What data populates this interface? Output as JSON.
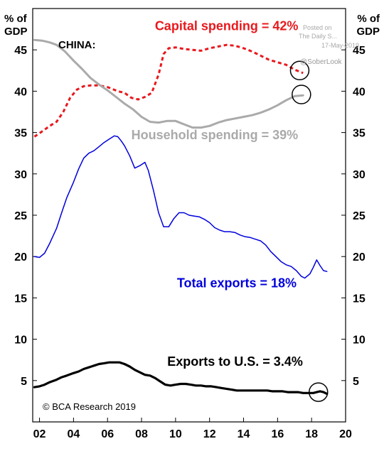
{
  "axis": {
    "left_title_line1": "% of",
    "left_title_line2": "GDP",
    "right_title_line1": "% of",
    "right_title_line2": "GDP"
  },
  "watermark": {
    "posted": "Posted on",
    "via": "The Daily S...",
    "date": "17-May-2019",
    "handle": "@SoberLook"
  },
  "chart_data": {
    "type": "line",
    "title": "CHINA:",
    "credit": "© BCA Research 2019",
    "xlim": [
      2001.6,
      2020
    ],
    "ylim": [
      0,
      50
    ],
    "x_ticks": [
      "02",
      "04",
      "06",
      "08",
      "10",
      "12",
      "14",
      "16",
      "18",
      "20"
    ],
    "x_tick_values": [
      2002,
      2004,
      2006,
      2008,
      2010,
      2012,
      2014,
      2016,
      2018,
      2020
    ],
    "y_ticks": [
      "5",
      "10",
      "15",
      "20",
      "25",
      "30",
      "35",
      "40",
      "45"
    ],
    "y_tick_values": [
      5,
      10,
      15,
      20,
      25,
      30,
      35,
      40,
      45
    ],
    "grid": false,
    "series": [
      {
        "name": "Capital spending = 42%",
        "color": "#e8191d",
        "style": "dashed",
        "x": [
          2001.7,
          2002.2,
          2002.6,
          2003.0,
          2003.4,
          2003.8,
          2004.2,
          2004.6,
          2005.0,
          2005.5,
          2006.0,
          2006.6,
          2007.0,
          2007.4,
          2007.8,
          2008.2,
          2008.6,
          2009.0,
          2009.3,
          2009.6,
          2010.0,
          2010.5,
          2011.0,
          2011.5,
          2012.0,
          2012.5,
          2013.0,
          2013.5,
          2014.0,
          2014.5,
          2015.0,
          2015.5,
          2016.0,
          2016.5,
          2017.0,
          2017.5
        ],
        "values": [
          34.5,
          35.2,
          35.8,
          36.3,
          37.5,
          39.2,
          40.2,
          40.6,
          40.7,
          40.7,
          40.5,
          40.0,
          39.8,
          39.2,
          39.0,
          39.3,
          39.8,
          42.0,
          44.5,
          45.2,
          45.3,
          45.1,
          45.0,
          44.9,
          45.2,
          45.4,
          45.6,
          45.5,
          45.2,
          44.8,
          44.3,
          43.8,
          43.5,
          43.2,
          42.6,
          42.2
        ]
      },
      {
        "name": "Household spending = 39%",
        "color": "#aaaaaa",
        "style": "solid",
        "x": [
          2001.7,
          2002.2,
          2002.6,
          2003.0,
          2003.5,
          2004.0,
          2004.5,
          2005.0,
          2005.5,
          2006.0,
          2006.5,
          2007.0,
          2007.5,
          2008.0,
          2008.5,
          2009.0,
          2009.5,
          2010.0,
          2010.5,
          2011.0,
          2011.5,
          2012.0,
          2012.5,
          2013.0,
          2013.5,
          2014.0,
          2014.5,
          2015.0,
          2015.5,
          2016.0,
          2016.5,
          2017.0,
          2017.5
        ],
        "values": [
          46.2,
          46.1,
          45.9,
          45.6,
          44.8,
          43.7,
          42.7,
          41.6,
          40.8,
          40.1,
          39.3,
          38.5,
          37.8,
          36.9,
          36.3,
          36.2,
          36.4,
          36.4,
          36.0,
          35.6,
          35.6,
          35.8,
          36.2,
          36.5,
          36.7,
          36.9,
          37.1,
          37.4,
          37.8,
          38.3,
          38.9,
          39.4,
          39.5
        ]
      },
      {
        "name": "Total exports = 18%",
        "color": "#0000dd",
        "style": "solid",
        "x": [
          2001.7,
          2002.0,
          2002.3,
          2002.6,
          2003.0,
          2003.3,
          2003.6,
          2004.0,
          2004.3,
          2004.6,
          2004.9,
          2005.2,
          2005.5,
          2005.8,
          2006.1,
          2006.4,
          2006.6,
          2006.8,
          2007.0,
          2007.3,
          2007.6,
          2007.9,
          2008.2,
          2008.4,
          2008.7,
          2009.0,
          2009.3,
          2009.6,
          2009.9,
          2010.2,
          2010.5,
          2010.8,
          2011.1,
          2011.4,
          2011.7,
          2012.0,
          2012.3,
          2012.6,
          2012.9,
          2013.2,
          2013.5,
          2013.8,
          2014.1,
          2014.4,
          2014.7,
          2015.0,
          2015.3,
          2015.6,
          2015.9,
          2016.2,
          2016.5,
          2016.8,
          2017.1,
          2017.4,
          2017.6,
          2017.9,
          2018.1,
          2018.3,
          2018.5,
          2018.7,
          2018.9
        ],
        "values": [
          20.0,
          19.9,
          20.4,
          21.6,
          23.4,
          25.3,
          27.1,
          29.0,
          30.6,
          31.9,
          32.5,
          32.8,
          33.3,
          33.8,
          34.2,
          34.6,
          34.5,
          34.0,
          33.4,
          32.2,
          30.7,
          31.0,
          31.4,
          30.4,
          28.0,
          25.3,
          23.6,
          23.6,
          24.6,
          25.3,
          25.3,
          25.0,
          24.9,
          24.8,
          24.5,
          24.1,
          23.5,
          23.2,
          23.0,
          23.0,
          22.9,
          22.6,
          22.4,
          22.3,
          22.1,
          21.9,
          21.4,
          20.6,
          20.0,
          19.4,
          19.0,
          18.8,
          18.3,
          17.6,
          17.4,
          17.9,
          18.7,
          19.6,
          18.9,
          18.3,
          18.2
        ]
      },
      {
        "name": "Exports to U.S. = 3.4%",
        "color": "#000000",
        "style": "solid",
        "x": [
          2001.7,
          2002.0,
          2002.3,
          2002.6,
          2003.0,
          2003.3,
          2003.6,
          2004.0,
          2004.3,
          2004.6,
          2004.9,
          2005.2,
          2005.5,
          2005.8,
          2006.1,
          2006.4,
          2006.7,
          2007.0,
          2007.3,
          2007.6,
          2007.9,
          2008.2,
          2008.5,
          2008.8,
          2009.1,
          2009.4,
          2009.7,
          2010.0,
          2010.3,
          2010.6,
          2010.9,
          2011.2,
          2011.5,
          2011.8,
          2012.1,
          2012.4,
          2012.7,
          2013.0,
          2013.3,
          2013.6,
          2013.9,
          2014.2,
          2014.5,
          2014.8,
          2015.1,
          2015.4,
          2015.7,
          2016.0,
          2016.3,
          2016.6,
          2016.9,
          2017.2,
          2017.5,
          2017.8,
          2018.1,
          2018.3,
          2018.5,
          2018.7,
          2018.9
        ],
        "values": [
          4.2,
          4.3,
          4.5,
          4.8,
          5.1,
          5.4,
          5.6,
          5.9,
          6.1,
          6.4,
          6.6,
          6.8,
          7.0,
          7.1,
          7.2,
          7.2,
          7.2,
          7.0,
          6.7,
          6.3,
          6.0,
          5.7,
          5.6,
          5.3,
          4.9,
          4.5,
          4.4,
          4.5,
          4.6,
          4.6,
          4.5,
          4.4,
          4.4,
          4.3,
          4.3,
          4.2,
          4.1,
          4.0,
          3.9,
          3.8,
          3.8,
          3.8,
          3.8,
          3.8,
          3.8,
          3.8,
          3.7,
          3.7,
          3.7,
          3.6,
          3.6,
          3.6,
          3.5,
          3.5,
          3.5,
          3.6,
          3.7,
          3.6,
          3.4
        ]
      }
    ],
    "annotations": [
      {
        "text": "Capital spending = 42%",
        "color": "#e8191d",
        "x": 2013.0,
        "y": 47.4
      },
      {
        "text": "Household spending = 39%",
        "color": "#aaaaaa",
        "x": 2012.3,
        "y": 34.2
      },
      {
        "text": "Total exports = 18%",
        "color": "#0000dd",
        "x": 2013.6,
        "y": 16.3
      },
      {
        "text": "Exports to U.S. = 3.4%",
        "color": "#000000",
        "x": 2013.5,
        "y": 6.8
      }
    ],
    "circles": [
      {
        "x": 2017.3,
        "y": 42.5
      },
      {
        "x": 2017.4,
        "y": 39.6
      },
      {
        "x": 2018.4,
        "y": 3.6
      }
    ]
  }
}
